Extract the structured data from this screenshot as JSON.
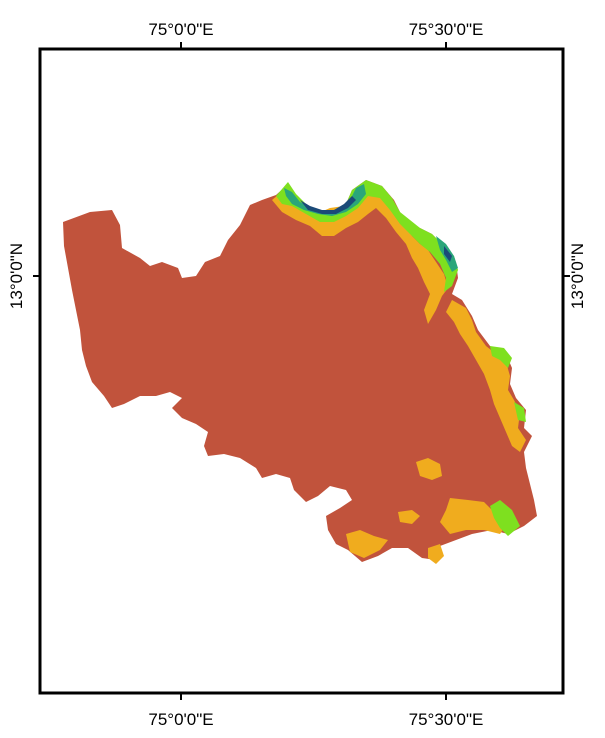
{
  "map": {
    "graticule_labels": {
      "top": [
        "75°0'0\"E",
        "75°30'0\"E"
      ],
      "bottom": [
        "75°0'0\"E",
        "75°30'0\"E"
      ],
      "left": [
        "13°0'0\"N"
      ],
      "right": [
        "13°0'0\"N"
      ]
    },
    "colors": {
      "frame": "#000000",
      "region_base": "#c1533c",
      "class_orange": "#f0ac1e",
      "class_green": "#7ee01f",
      "class_teal": "#2aa67a",
      "class_dark_blue": "#1b4a78"
    }
  }
}
